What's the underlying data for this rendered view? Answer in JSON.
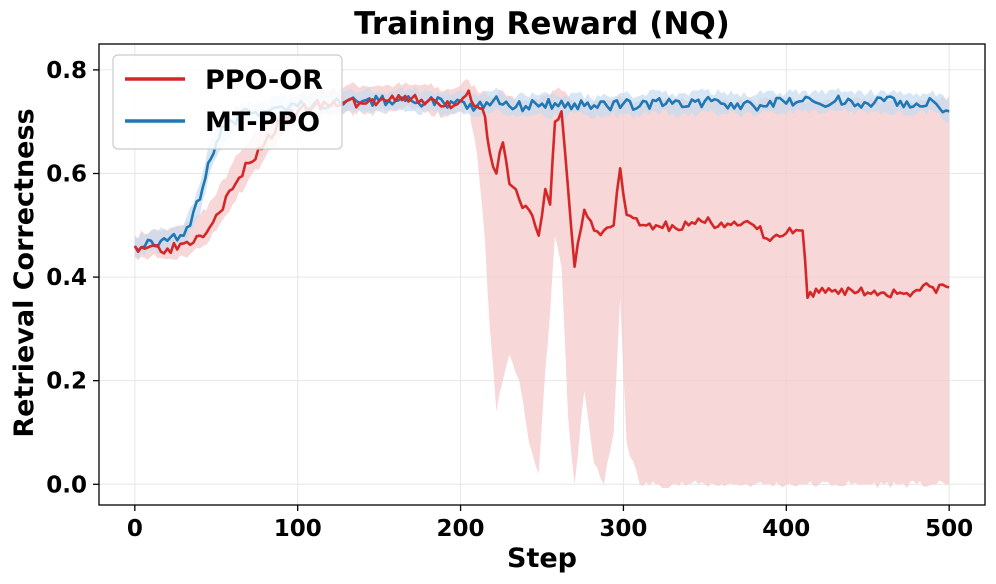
{
  "chart_data": {
    "type": "line",
    "title": "Training Reward (NQ)",
    "xlabel": "Step",
    "ylabel": "Retrieval Correctness",
    "xlim": [
      -22,
      522
    ],
    "ylim": [
      -0.04,
      0.85
    ],
    "xticks": [
      0,
      100,
      200,
      300,
      400,
      500
    ],
    "yticks": [
      0.0,
      0.2,
      0.4,
      0.6,
      0.8
    ],
    "xtick_labels": [
      "0",
      "100",
      "200",
      "300",
      "400",
      "500"
    ],
    "ytick_labels": [
      "0.0",
      "0.2",
      "0.4",
      "0.6",
      "0.8"
    ],
    "grid": true,
    "legend_position": "top-left",
    "series": [
      {
        "name": "PPO-OR",
        "color": "#d62728",
        "band_color": "#f4c9c9",
        "x": [
          0,
          10,
          20,
          30,
          40,
          50,
          60,
          70,
          80,
          90,
          100,
          110,
          120,
          130,
          140,
          150,
          160,
          170,
          180,
          190,
          200,
          205,
          210,
          215,
          218,
          222,
          226,
          230,
          236,
          242,
          248,
          252,
          255,
          258,
          262,
          266,
          270,
          276,
          282,
          288,
          294,
          298,
          302,
          310,
          320,
          330,
          340,
          350,
          360,
          370,
          380,
          390,
          400,
          408,
          410,
          413,
          420,
          430,
          440,
          450,
          460,
          470,
          480,
          490,
          500
        ],
        "y": [
          0.46,
          0.46,
          0.455,
          0.465,
          0.48,
          0.52,
          0.57,
          0.62,
          0.66,
          0.7,
          0.72,
          0.73,
          0.73,
          0.74,
          0.735,
          0.74,
          0.74,
          0.745,
          0.74,
          0.73,
          0.74,
          0.76,
          0.73,
          0.71,
          0.64,
          0.6,
          0.66,
          0.58,
          0.55,
          0.53,
          0.48,
          0.57,
          0.54,
          0.7,
          0.72,
          0.57,
          0.42,
          0.53,
          0.49,
          0.49,
          0.5,
          0.61,
          0.52,
          0.5,
          0.5,
          0.5,
          0.5,
          0.505,
          0.505,
          0.5,
          0.5,
          0.47,
          0.485,
          0.49,
          0.49,
          0.36,
          0.37,
          0.375,
          0.375,
          0.37,
          0.37,
          0.37,
          0.375,
          0.38,
          0.38
        ],
        "lower": [
          0.44,
          0.44,
          0.435,
          0.44,
          0.455,
          0.49,
          0.54,
          0.59,
          0.63,
          0.67,
          0.7,
          0.71,
          0.71,
          0.72,
          0.715,
          0.72,
          0.72,
          0.725,
          0.72,
          0.71,
          0.72,
          0.73,
          0.64,
          0.47,
          0.3,
          0.14,
          0.2,
          0.25,
          0.2,
          0.08,
          0.02,
          0.22,
          0.33,
          0.48,
          0.42,
          0.13,
          0.0,
          0.18,
          0.04,
          0.0,
          0.1,
          0.36,
          0.08,
          0.0,
          0.0,
          0.0,
          0.0,
          0.0,
          0.0,
          0.0,
          0.0,
          0.0,
          0.0,
          0.0,
          0.0,
          0.0,
          0.0,
          0.0,
          0.0,
          0.0,
          0.0,
          0.0,
          0.0,
          0.0,
          0.0
        ],
        "upper": [
          0.48,
          0.49,
          0.49,
          0.5,
          0.52,
          0.56,
          0.62,
          0.66,
          0.7,
          0.73,
          0.75,
          0.76,
          0.76,
          0.77,
          0.77,
          0.77,
          0.77,
          0.77,
          0.77,
          0.76,
          0.77,
          0.78,
          0.76,
          0.76,
          0.75,
          0.75,
          0.76,
          0.75,
          0.74,
          0.74,
          0.74,
          0.75,
          0.75,
          0.76,
          0.76,
          0.75,
          0.74,
          0.74,
          0.74,
          0.74,
          0.74,
          0.75,
          0.74,
          0.74,
          0.74,
          0.74,
          0.74,
          0.74,
          0.74,
          0.74,
          0.74,
          0.74,
          0.74,
          0.74,
          0.74,
          0.74,
          0.74,
          0.74,
          0.74,
          0.74,
          0.74,
          0.74,
          0.74,
          0.74,
          0.75
        ]
      },
      {
        "name": "MT-PPO",
        "color": "#1f77b4",
        "band_color": "#c6dbef",
        "x": [
          0,
          10,
          20,
          30,
          40,
          45,
          50,
          55,
          60,
          70,
          80,
          90,
          100,
          110,
          120,
          130,
          140,
          150,
          160,
          170,
          180,
          190,
          200,
          210,
          220,
          230,
          240,
          250,
          260,
          270,
          280,
          290,
          300,
          310,
          320,
          330,
          340,
          350,
          360,
          370,
          380,
          390,
          400,
          410,
          420,
          430,
          440,
          450,
          460,
          470,
          480,
          490,
          500
        ],
        "y": [
          0.46,
          0.47,
          0.47,
          0.48,
          0.55,
          0.62,
          0.66,
          0.69,
          0.7,
          0.72,
          0.72,
          0.73,
          0.73,
          0.735,
          0.73,
          0.74,
          0.74,
          0.74,
          0.74,
          0.74,
          0.74,
          0.735,
          0.74,
          0.73,
          0.74,
          0.73,
          0.73,
          0.735,
          0.73,
          0.735,
          0.725,
          0.73,
          0.735,
          0.73,
          0.74,
          0.735,
          0.73,
          0.74,
          0.735,
          0.735,
          0.73,
          0.74,
          0.735,
          0.74,
          0.735,
          0.74,
          0.74,
          0.735,
          0.74,
          0.74,
          0.735,
          0.74,
          0.72
        ],
        "lower": [
          0.44,
          0.45,
          0.45,
          0.46,
          0.52,
          0.59,
          0.63,
          0.66,
          0.68,
          0.7,
          0.7,
          0.71,
          0.71,
          0.715,
          0.71,
          0.72,
          0.72,
          0.72,
          0.72,
          0.72,
          0.72,
          0.715,
          0.72,
          0.71,
          0.72,
          0.71,
          0.71,
          0.715,
          0.71,
          0.715,
          0.705,
          0.71,
          0.715,
          0.71,
          0.72,
          0.715,
          0.71,
          0.72,
          0.715,
          0.715,
          0.71,
          0.72,
          0.715,
          0.72,
          0.715,
          0.72,
          0.72,
          0.715,
          0.72,
          0.72,
          0.715,
          0.72,
          0.7
        ],
        "upper": [
          0.48,
          0.49,
          0.49,
          0.5,
          0.58,
          0.65,
          0.69,
          0.72,
          0.72,
          0.74,
          0.74,
          0.75,
          0.75,
          0.755,
          0.75,
          0.76,
          0.76,
          0.76,
          0.76,
          0.76,
          0.76,
          0.755,
          0.76,
          0.75,
          0.76,
          0.75,
          0.75,
          0.755,
          0.75,
          0.755,
          0.745,
          0.75,
          0.755,
          0.75,
          0.76,
          0.755,
          0.75,
          0.76,
          0.755,
          0.755,
          0.75,
          0.76,
          0.755,
          0.76,
          0.755,
          0.76,
          0.76,
          0.755,
          0.76,
          0.76,
          0.755,
          0.76,
          0.74
        ]
      }
    ]
  }
}
